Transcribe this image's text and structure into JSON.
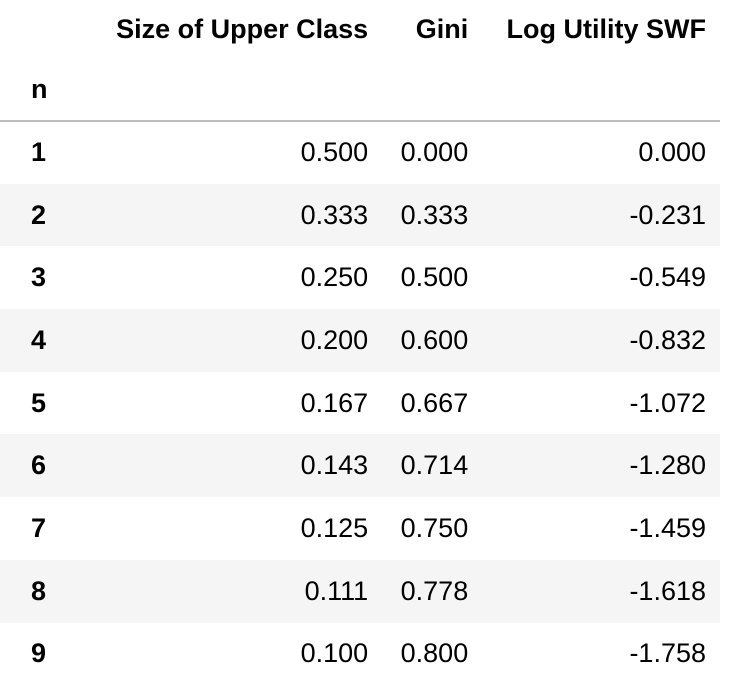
{
  "table": {
    "columns": [
      "Size of Upper Class",
      "Gini",
      "Log Utility SWF"
    ],
    "index_name": "n",
    "rows": [
      {
        "n": "1",
        "size": "0.500",
        "gini": "0.000",
        "swf": "0.000"
      },
      {
        "n": "2",
        "size": "0.333",
        "gini": "0.333",
        "swf": "-0.231"
      },
      {
        "n": "3",
        "size": "0.250",
        "gini": "0.500",
        "swf": "-0.549"
      },
      {
        "n": "4",
        "size": "0.200",
        "gini": "0.600",
        "swf": "-0.832"
      },
      {
        "n": "5",
        "size": "0.167",
        "gini": "0.667",
        "swf": "-1.072"
      },
      {
        "n": "6",
        "size": "0.143",
        "gini": "0.714",
        "swf": "-1.280"
      },
      {
        "n": "7",
        "size": "0.125",
        "gini": "0.750",
        "swf": "-1.459"
      },
      {
        "n": "8",
        "size": "0.111",
        "gini": "0.778",
        "swf": "-1.618"
      },
      {
        "n": "9",
        "size": "0.100",
        "gini": "0.800",
        "swf": "-1.758"
      }
    ]
  },
  "colors": {
    "stripe": "#f5f5f5",
    "header_rule": "#bdbdbd",
    "text": "#000000"
  }
}
